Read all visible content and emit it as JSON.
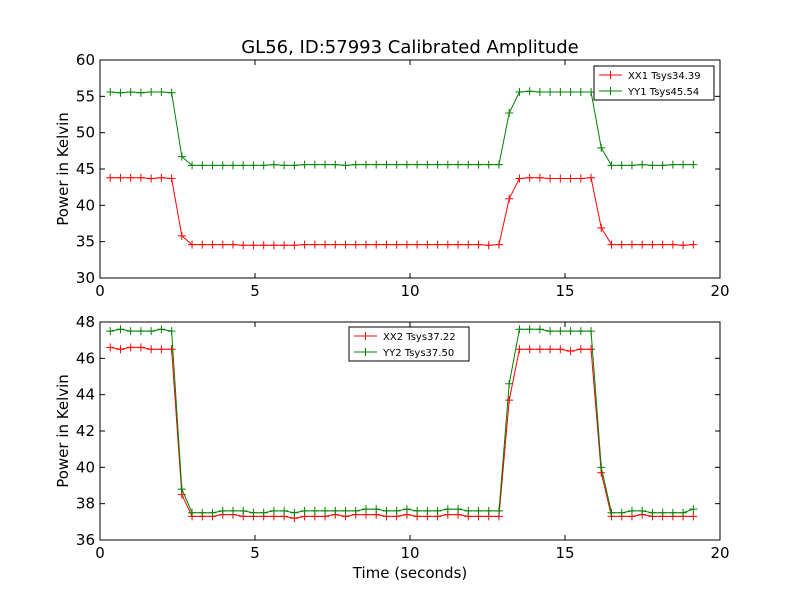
{
  "page_title": "GL56, ID:57993 Calibrated Amplitude",
  "chart_data": [
    {
      "type": "line",
      "title": "GL56, ID:57993 Calibrated Amplitude",
      "xlabel": "",
      "ylabel": "Power in Kelvin",
      "xlim": [
        0,
        20
      ],
      "ylim": [
        30,
        60
      ],
      "xticks": [
        "0",
        "5",
        "10",
        "15",
        "20"
      ],
      "yticks": [
        "30",
        "35",
        "40",
        "45",
        "50",
        "55",
        "60"
      ],
      "legend_position": "top-right",
      "grid": false,
      "x": [
        0.33,
        0.66,
        0.99,
        1.32,
        1.65,
        1.98,
        2.31,
        2.64,
        2.97,
        3.3,
        3.63,
        3.96,
        4.29,
        4.62,
        4.95,
        5.28,
        5.61,
        5.94,
        6.27,
        6.6,
        6.93,
        7.26,
        7.59,
        7.92,
        8.25,
        8.58,
        8.91,
        9.24,
        9.57,
        9.9,
        10.23,
        10.56,
        10.89,
        11.22,
        11.55,
        11.88,
        12.21,
        12.54,
        12.87,
        13.2,
        13.53,
        13.86,
        14.19,
        14.52,
        14.85,
        15.18,
        15.51,
        15.84,
        16.17,
        16.5,
        16.83,
        17.16,
        17.49,
        17.82,
        18.15,
        18.48,
        18.81,
        19.14
      ],
      "series": [
        {
          "name": "XX1 Tsys34.39",
          "color": "#ff0000",
          "values": [
            43.8,
            43.8,
            43.8,
            43.8,
            43.7,
            43.8,
            43.7,
            35.8,
            34.6,
            34.6,
            34.6,
            34.6,
            34.6,
            34.5,
            34.5,
            34.5,
            34.5,
            34.5,
            34.5,
            34.6,
            34.6,
            34.6,
            34.6,
            34.6,
            34.6,
            34.6,
            34.6,
            34.6,
            34.6,
            34.6,
            34.6,
            34.6,
            34.6,
            34.6,
            34.6,
            34.6,
            34.6,
            34.5,
            34.6,
            40.9,
            43.7,
            43.8,
            43.8,
            43.7,
            43.7,
            43.7,
            43.7,
            43.8,
            36.9,
            34.6,
            34.6,
            34.6,
            34.6,
            34.6,
            34.6,
            34.6,
            34.5,
            34.6
          ]
        },
        {
          "name": "YY1 Tsys45.54",
          "color": "#008000",
          "values": [
            55.6,
            55.5,
            55.6,
            55.5,
            55.6,
            55.6,
            55.5,
            46.7,
            45.5,
            45.5,
            45.5,
            45.5,
            45.5,
            45.5,
            45.5,
            45.5,
            45.6,
            45.5,
            45.5,
            45.6,
            45.6,
            45.6,
            45.6,
            45.5,
            45.6,
            45.6,
            45.6,
            45.6,
            45.6,
            45.6,
            45.6,
            45.6,
            45.6,
            45.6,
            45.6,
            45.6,
            45.6,
            45.6,
            45.6,
            52.7,
            55.6,
            55.7,
            55.6,
            55.6,
            55.6,
            55.6,
            55.6,
            55.6,
            47.9,
            45.5,
            45.5,
            45.5,
            45.6,
            45.5,
            45.5,
            45.6,
            45.6,
            45.6
          ]
        }
      ]
    },
    {
      "type": "line",
      "title": "",
      "xlabel": "Time (seconds)",
      "ylabel": "Power in Kelvin",
      "xlim": [
        0,
        20
      ],
      "ylim": [
        36,
        48
      ],
      "xticks": [
        "0",
        "5",
        "10",
        "15",
        "20"
      ],
      "yticks": [
        "36",
        "38",
        "40",
        "42",
        "44",
        "46",
        "48"
      ],
      "legend_position": "top-center",
      "grid": false,
      "x": [
        0.33,
        0.66,
        0.99,
        1.32,
        1.65,
        1.98,
        2.31,
        2.64,
        2.97,
        3.3,
        3.63,
        3.96,
        4.29,
        4.62,
        4.95,
        5.28,
        5.61,
        5.94,
        6.27,
        6.6,
        6.93,
        7.26,
        7.59,
        7.92,
        8.25,
        8.58,
        8.91,
        9.24,
        9.57,
        9.9,
        10.23,
        10.56,
        10.89,
        11.22,
        11.55,
        11.88,
        12.21,
        12.54,
        12.87,
        13.2,
        13.53,
        13.86,
        14.19,
        14.52,
        14.85,
        15.18,
        15.51,
        15.84,
        16.17,
        16.5,
        16.83,
        17.16,
        17.49,
        17.82,
        18.15,
        18.48,
        18.81,
        19.14
      ],
      "series": [
        {
          "name": "XX2 Tsys37.22",
          "color": "#ff0000",
          "values": [
            46.6,
            46.5,
            46.6,
            46.6,
            46.5,
            46.5,
            46.5,
            38.5,
            37.3,
            37.3,
            37.3,
            37.4,
            37.4,
            37.3,
            37.3,
            37.3,
            37.3,
            37.3,
            37.2,
            37.3,
            37.3,
            37.3,
            37.4,
            37.3,
            37.4,
            37.4,
            37.4,
            37.3,
            37.3,
            37.4,
            37.3,
            37.3,
            37.3,
            37.4,
            37.4,
            37.3,
            37.3,
            37.3,
            37.3,
            43.7,
            46.5,
            46.5,
            46.5,
            46.5,
            46.5,
            46.4,
            46.5,
            46.5,
            39.7,
            37.3,
            37.3,
            37.3,
            37.4,
            37.3,
            37.3,
            37.3,
            37.3,
            37.3
          ]
        },
        {
          "name": "YY2 Tsys37.50",
          "color": "#008000",
          "values": [
            47.5,
            47.6,
            47.5,
            47.5,
            47.5,
            47.6,
            47.5,
            38.8,
            37.5,
            37.5,
            37.5,
            37.6,
            37.6,
            37.6,
            37.5,
            37.5,
            37.6,
            37.6,
            37.5,
            37.6,
            37.6,
            37.6,
            37.6,
            37.6,
            37.6,
            37.7,
            37.7,
            37.6,
            37.6,
            37.7,
            37.6,
            37.6,
            37.6,
            37.7,
            37.7,
            37.6,
            37.6,
            37.6,
            37.6,
            44.6,
            47.6,
            47.6,
            47.6,
            47.5,
            47.5,
            47.5,
            47.5,
            47.5,
            40.0,
            37.5,
            37.5,
            37.6,
            37.6,
            37.5,
            37.5,
            37.5,
            37.5,
            37.7
          ]
        }
      ]
    }
  ]
}
